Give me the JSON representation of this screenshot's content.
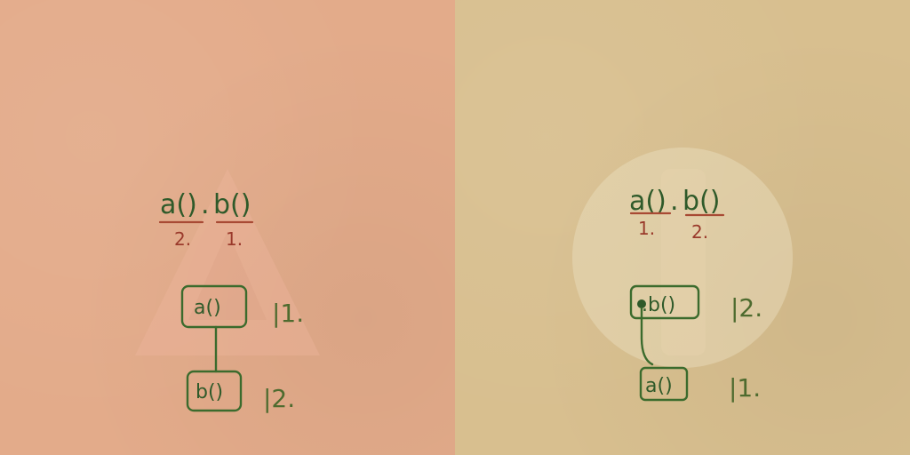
{
  "left": {
    "expression": {
      "call_a": "a()",
      "dot": ".",
      "call_b": "b()"
    },
    "order": {
      "under_a": "2.",
      "under_b": "1."
    },
    "tree": {
      "top_node": "a()",
      "top_rank": "|1.",
      "bottom_node": "b()",
      "bottom_rank": "|2."
    }
  },
  "right": {
    "expression": {
      "call_a": "a()",
      "dot": ".",
      "call_b": "b()"
    },
    "order": {
      "under_a": "1.",
      "under_b": "2."
    },
    "tree": {
      "top_node": ".b()",
      "top_rank": "|2.",
      "bottom_node": "a()",
      "bottom_rank": "|1."
    }
  },
  "colors": {
    "left_background": "#e3ab8a",
    "right_background": "#d8bf8f",
    "ink_green": "#3b6b2d",
    "ink_red": "#a84a34"
  }
}
